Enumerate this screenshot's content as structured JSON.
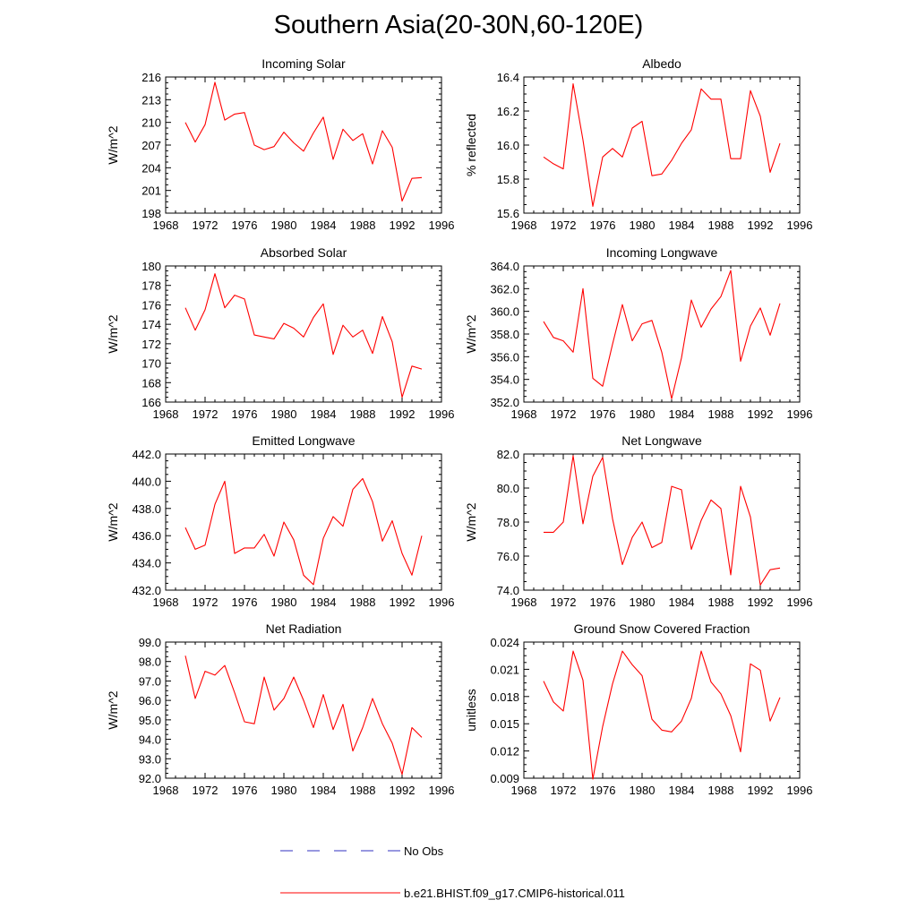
{
  "title": "Southern Asia(20-30N,60-120E)",
  "colors": {
    "model": "#ff0000",
    "obs": "#3030c0",
    "axis": "#000000"
  },
  "legend": [
    {
      "label": "No Obs",
      "style": "dashed",
      "color": "#3030c0"
    },
    {
      "label": "b.e21.BHIST.f09_g17.CMIP6-historical.011",
      "style": "solid",
      "color": "#ff0000"
    }
  ],
  "chart_data": [
    {
      "type": "line",
      "title": "Incoming Solar",
      "xlabel": "",
      "ylabel": "W/m^2",
      "xlim": [
        1968,
        1996
      ],
      "ylim": [
        198,
        216
      ],
      "xticks": [
        "1968",
        "1972",
        "1976",
        "1980",
        "1984",
        "1988",
        "1992",
        "1996"
      ],
      "yticks": [
        "198",
        "201",
        "204",
        "207",
        "210",
        "213",
        "216"
      ],
      "x": [
        1970,
        1971,
        1972,
        1973,
        1974,
        1975,
        1976,
        1977,
        1978,
        1979,
        1980,
        1981,
        1982,
        1983,
        1984,
        1985,
        1986,
        1987,
        1988,
        1989,
        1990,
        1991,
        1992,
        1993,
        1994
      ],
      "series": [
        {
          "name": "b.e21.BHIST.f09_g17.CMIP6-historical.011",
          "values": [
            210.0,
            207.4,
            209.7,
            215.3,
            210.3,
            211.1,
            211.3,
            207.0,
            206.4,
            206.8,
            208.7,
            207.3,
            206.2,
            208.6,
            210.7,
            205.1,
            209.1,
            207.6,
            208.5,
            204.5,
            208.9,
            206.7,
            199.6,
            202.6,
            202.7
          ]
        }
      ]
    },
    {
      "type": "line",
      "title": "Albedo",
      "xlabel": "",
      "ylabel": "% reflected",
      "xlim": [
        1968,
        1996
      ],
      "ylim": [
        15.6,
        16.4
      ],
      "xticks": [
        "1968",
        "1972",
        "1976",
        "1980",
        "1984",
        "1988",
        "1992",
        "1996"
      ],
      "yticks": [
        "15.6",
        "15.8",
        "16.0",
        "16.2",
        "16.4"
      ],
      "x": [
        1970,
        1971,
        1972,
        1973,
        1974,
        1975,
        1976,
        1977,
        1978,
        1979,
        1980,
        1981,
        1982,
        1983,
        1984,
        1985,
        1986,
        1987,
        1988,
        1989,
        1990,
        1991,
        1992,
        1993,
        1994
      ],
      "series": [
        {
          "name": "b.e21.BHIST.f09_g17.CMIP6-historical.011",
          "values": [
            15.93,
            15.89,
            15.86,
            16.36,
            16.03,
            15.64,
            15.93,
            15.98,
            15.93,
            16.1,
            16.14,
            15.82,
            15.83,
            15.91,
            16.01,
            16.09,
            16.33,
            16.27,
            16.27,
            15.92,
            15.92,
            16.32,
            16.17,
            15.84,
            16.01
          ]
        }
      ]
    },
    {
      "type": "line",
      "title": "Absorbed Solar",
      "xlabel": "",
      "ylabel": "W/m^2",
      "xlim": [
        1968,
        1996
      ],
      "ylim": [
        166,
        180
      ],
      "xticks": [
        "1968",
        "1972",
        "1976",
        "1980",
        "1984",
        "1988",
        "1992",
        "1996"
      ],
      "yticks": [
        "166",
        "168",
        "170",
        "172",
        "174",
        "176",
        "178",
        "180"
      ],
      "x": [
        1970,
        1971,
        1972,
        1973,
        1974,
        1975,
        1976,
        1977,
        1978,
        1979,
        1980,
        1981,
        1982,
        1983,
        1984,
        1985,
        1986,
        1987,
        1988,
        1989,
        1990,
        1991,
        1992,
        1993,
        1994
      ],
      "series": [
        {
          "name": "b.e21.BHIST.f09_g17.CMIP6-historical.011",
          "values": [
            175.7,
            173.4,
            175.5,
            179.2,
            175.7,
            177.0,
            176.6,
            172.9,
            172.7,
            172.5,
            174.1,
            173.6,
            172.7,
            174.7,
            176.1,
            170.9,
            173.9,
            172.7,
            173.4,
            171.0,
            174.8,
            172.2,
            166.5,
            169.7,
            169.4
          ]
        }
      ]
    },
    {
      "type": "line",
      "title": "Incoming Longwave",
      "xlabel": "",
      "ylabel": "W/m^2",
      "xlim": [
        1968,
        1996
      ],
      "ylim": [
        352.0,
        364.0
      ],
      "xticks": [
        "1968",
        "1972",
        "1976",
        "1980",
        "1984",
        "1988",
        "1992",
        "1996"
      ],
      "yticks": [
        "352.0",
        "354.0",
        "356.0",
        "358.0",
        "360.0",
        "362.0",
        "364.0"
      ],
      "x": [
        1970,
        1971,
        1972,
        1973,
        1974,
        1975,
        1976,
        1977,
        1978,
        1979,
        1980,
        1981,
        1982,
        1983,
        1984,
        1985,
        1986,
        1987,
        1988,
        1989,
        1990,
        1991,
        1992,
        1993,
        1994
      ],
      "series": [
        {
          "name": "b.e21.BHIST.f09_g17.CMIP6-historical.011",
          "values": [
            359.1,
            357.7,
            357.4,
            356.4,
            362.0,
            354.1,
            353.4,
            357.1,
            360.6,
            357.4,
            358.9,
            359.2,
            356.4,
            352.3,
            355.9,
            361.0,
            358.6,
            360.2,
            361.3,
            363.6,
            355.6,
            358.7,
            360.3,
            357.9,
            360.7
          ]
        }
      ]
    },
    {
      "type": "line",
      "title": "Emitted Longwave",
      "xlabel": "",
      "ylabel": "W/m^2",
      "xlim": [
        1968,
        1996
      ],
      "ylim": [
        432.0,
        442.0
      ],
      "xticks": [
        "1968",
        "1972",
        "1976",
        "1980",
        "1984",
        "1988",
        "1992",
        "1996"
      ],
      "yticks": [
        "432.0",
        "434.0",
        "436.0",
        "438.0",
        "440.0",
        "442.0"
      ],
      "x": [
        1970,
        1971,
        1972,
        1973,
        1974,
        1975,
        1976,
        1977,
        1978,
        1979,
        1980,
        1981,
        1982,
        1983,
        1984,
        1985,
        1986,
        1987,
        1988,
        1989,
        1990,
        1991,
        1992,
        1993,
        1994
      ],
      "series": [
        {
          "name": "b.e21.BHIST.f09_g17.CMIP6-historical.011",
          "values": [
            436.6,
            435.0,
            435.3,
            438.3,
            440.0,
            434.7,
            435.1,
            435.1,
            436.1,
            434.5,
            437.0,
            435.7,
            433.1,
            432.4,
            435.8,
            437.4,
            436.7,
            439.4,
            440.2,
            438.5,
            435.6,
            437.1,
            434.7,
            433.1,
            436.0
          ]
        }
      ]
    },
    {
      "type": "line",
      "title": "Net Longwave",
      "xlabel": "",
      "ylabel": "W/m^2",
      "xlim": [
        1968,
        1996
      ],
      "ylim": [
        74.0,
        82.0
      ],
      "xticks": [
        "1968",
        "1972",
        "1976",
        "1980",
        "1984",
        "1988",
        "1992",
        "1996"
      ],
      "yticks": [
        "74.0",
        "76.0",
        "78.0",
        "80.0",
        "82.0"
      ],
      "x": [
        1970,
        1971,
        1972,
        1973,
        1974,
        1975,
        1976,
        1977,
        1978,
        1979,
        1980,
        1981,
        1982,
        1983,
        1984,
        1985,
        1986,
        1987,
        1988,
        1989,
        1990,
        1991,
        1992,
        1993,
        1994
      ],
      "series": [
        {
          "name": "b.e21.BHIST.f09_g17.CMIP6-historical.011",
          "values": [
            77.4,
            77.4,
            78.0,
            81.9,
            77.9,
            80.7,
            81.8,
            78.2,
            75.5,
            77.1,
            78.0,
            76.5,
            76.8,
            80.1,
            79.9,
            76.4,
            78.1,
            79.3,
            78.8,
            74.9,
            80.1,
            78.3,
            74.3,
            75.2,
            75.3
          ]
        }
      ]
    },
    {
      "type": "line",
      "title": "Net Radiation",
      "xlabel": "",
      "ylabel": "W/m^2",
      "xlim": [
        1968,
        1996
      ],
      "ylim": [
        92.0,
        99.0
      ],
      "xticks": [
        "1968",
        "1972",
        "1976",
        "1980",
        "1984",
        "1988",
        "1992",
        "1996"
      ],
      "yticks": [
        "92.0",
        "93.0",
        "94.0",
        "95.0",
        "96.0",
        "97.0",
        "98.0",
        "99.0"
      ],
      "x": [
        1970,
        1971,
        1972,
        1973,
        1974,
        1975,
        1976,
        1977,
        1978,
        1979,
        1980,
        1981,
        1982,
        1983,
        1984,
        1985,
        1986,
        1987,
        1988,
        1989,
        1990,
        1991,
        1992,
        1993,
        1994
      ],
      "series": [
        {
          "name": "b.e21.BHIST.f09_g17.CMIP6-historical.011",
          "values": [
            98.3,
            96.1,
            97.5,
            97.3,
            97.8,
            96.4,
            94.9,
            94.8,
            97.2,
            95.5,
            96.1,
            97.2,
            96.0,
            94.6,
            96.3,
            94.5,
            95.8,
            93.4,
            94.6,
            96.1,
            94.8,
            93.8,
            92.2,
            94.6,
            94.1
          ]
        }
      ]
    },
    {
      "type": "line",
      "title": "Ground Snow Covered Fraction",
      "xlabel": "",
      "ylabel": "unitless",
      "xlim": [
        1968,
        1996
      ],
      "ylim": [
        0.009,
        0.024
      ],
      "xticks": [
        "1968",
        "1972",
        "1976",
        "1980",
        "1984",
        "1988",
        "1992",
        "1996"
      ],
      "yticks": [
        "0.009",
        "0.012",
        "0.015",
        "0.018",
        "0.021",
        "0.024"
      ],
      "x": [
        1970,
        1971,
        1972,
        1973,
        1974,
        1975,
        1976,
        1977,
        1978,
        1979,
        1980,
        1981,
        1982,
        1983,
        1984,
        1985,
        1986,
        1987,
        1988,
        1989,
        1990,
        1991,
        1992,
        1993,
        1994
      ],
      "series": [
        {
          "name": "b.e21.BHIST.f09_g17.CMIP6-historical.011",
          "values": [
            0.0197,
            0.0174,
            0.0164,
            0.023,
            0.0198,
            0.0089,
            0.0147,
            0.0194,
            0.023,
            0.0215,
            0.0203,
            0.0155,
            0.0143,
            0.0141,
            0.0153,
            0.0178,
            0.023,
            0.0196,
            0.0183,
            0.0159,
            0.0119,
            0.0216,
            0.0209,
            0.0153,
            0.0179
          ]
        }
      ]
    }
  ]
}
